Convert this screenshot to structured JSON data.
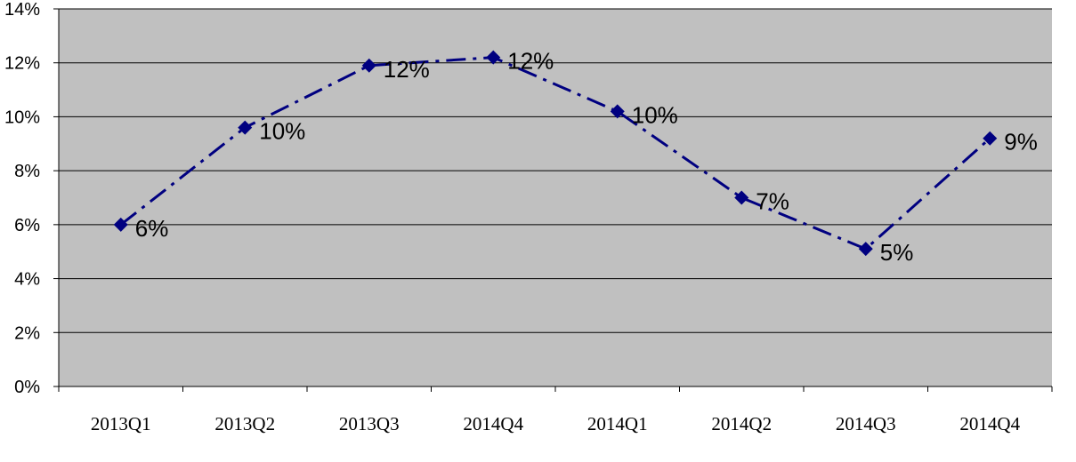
{
  "chart_data": {
    "type": "line",
    "title": "",
    "xlabel": "",
    "ylabel": "",
    "categories": [
      "2013Q1",
      "2013Q2",
      "2013Q3",
      "2014Q4",
      "2014Q1",
      "2014Q2",
      "2014Q3",
      "2014Q4"
    ],
    "series": [
      {
        "values": [
          6.0,
          9.6,
          11.9,
          12.2,
          10.2,
          7.0,
          5.1,
          9.2
        ],
        "data_labels": [
          "6%",
          "10%",
          "12%",
          "12%",
          "10%",
          "7%",
          "5%",
          "9%"
        ],
        "color": "#000080",
        "line_style": "dash-dot",
        "marker": "diamond"
      }
    ],
    "ylim": [
      0,
      14
    ],
    "yticks": [
      0,
      2,
      4,
      6,
      8,
      10,
      12,
      14
    ],
    "ytick_labels": [
      "0%",
      "2%",
      "4%",
      "6%",
      "8%",
      "10%",
      "12%",
      "14%"
    ],
    "grid": true,
    "legend": "none",
    "plot_background": "#c0c0c0"
  }
}
